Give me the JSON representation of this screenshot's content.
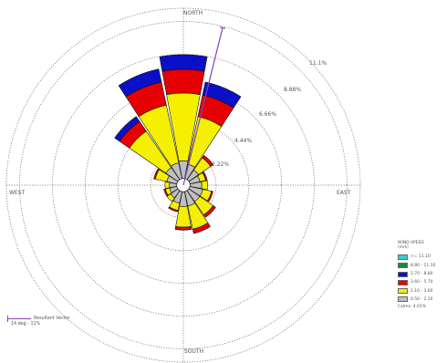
{
  "chart_data": {
    "type": "wind-rose",
    "directions": [
      "N",
      "NNE",
      "NE",
      "ENE",
      "E",
      "ESE",
      "SE",
      "SSE",
      "S",
      "SSW",
      "SW",
      "WSW",
      "W",
      "WNW",
      "NW",
      "NNW"
    ],
    "compass_labels": {
      "north": "NORTH",
      "south": "SOUTH",
      "east": "EAST",
      "west": "WEST"
    },
    "ring_labels": [
      "2.22%",
      "4.44%",
      "6.66%",
      "8.88%",
      "11.1%"
    ],
    "rmax_percent": 12.0,
    "bins": [
      {
        "label": ">= 11.10",
        "color": "#2fd2d2"
      },
      {
        "label": "8.80 - 11.10",
        "color": "#1a8a3a"
      },
      {
        "label": "5.70 - 8.80",
        "color": "#0a10c8"
      },
      {
        "label": "3.60 - 5.70",
        "color": "#e60000"
      },
      {
        "label": "2.10 - 3.60",
        "color": "#f5f000"
      },
      {
        "label": "0.50 - 2.10",
        "color": "#c0c0c0"
      }
    ],
    "frequencies_percent": {
      "N": [
        0,
        0,
        1.0,
        1.6,
        4.6,
        1.2
      ],
      "NNE": [
        0,
        0,
        0.9,
        1.5,
        3.3,
        1.0
      ],
      "NE": [
        0,
        0,
        0,
        0.2,
        1.0,
        0.8
      ],
      "ENE": [
        0,
        0,
        0,
        0.1,
        0.4,
        0.7
      ],
      "E": [
        0,
        0,
        0,
        0,
        0.4,
        0.8
      ],
      "ESE": [
        0,
        0,
        0,
        0.1,
        0.6,
        0.9
      ],
      "SE": [
        0,
        0,
        0,
        0.2,
        1.1,
        0.9
      ],
      "SSE": [
        0,
        0,
        0,
        0.3,
        1.6,
        1.0
      ],
      "S": [
        0,
        0,
        0,
        0.2,
        1.4,
        1.0
      ],
      "SSW": [
        0,
        0,
        0,
        0.1,
        0.5,
        0.8
      ],
      "SW": [
        0,
        0,
        0,
        0,
        0.3,
        0.6
      ],
      "WSW": [
        0,
        0,
        0,
        0.1,
        0.3,
        0.5
      ],
      "W": [
        0,
        0,
        0,
        0,
        0.3,
        0.5
      ],
      "WNW": [
        0,
        0,
        0,
        0.1,
        0.8,
        0.7
      ],
      "NW": [
        0,
        0,
        0.4,
        0.8,
        3.0,
        1.0
      ],
      "NNW": [
        0,
        0,
        0.9,
        1.6,
        4.0,
        1.1
      ]
    },
    "resultant_vector": {
      "direction_deg": 14,
      "percent": 11
    },
    "grid": "dotted",
    "legend_position": "bottom-right"
  },
  "legend": {
    "title_line1": "WIND SPEED",
    "title_line2": "(m/s)",
    "labels": [
      ">= 11.10",
      "8.80 - 11.10",
      "5.70 - 8.80",
      "3.60 - 5.70",
      "2.10 - 3.60",
      "0.50 - 2.10"
    ],
    "calms": "Calms: 4.01%"
  },
  "resultant_text": {
    "label": "Resultant Vector",
    "value": "14 deg - 11%"
  }
}
